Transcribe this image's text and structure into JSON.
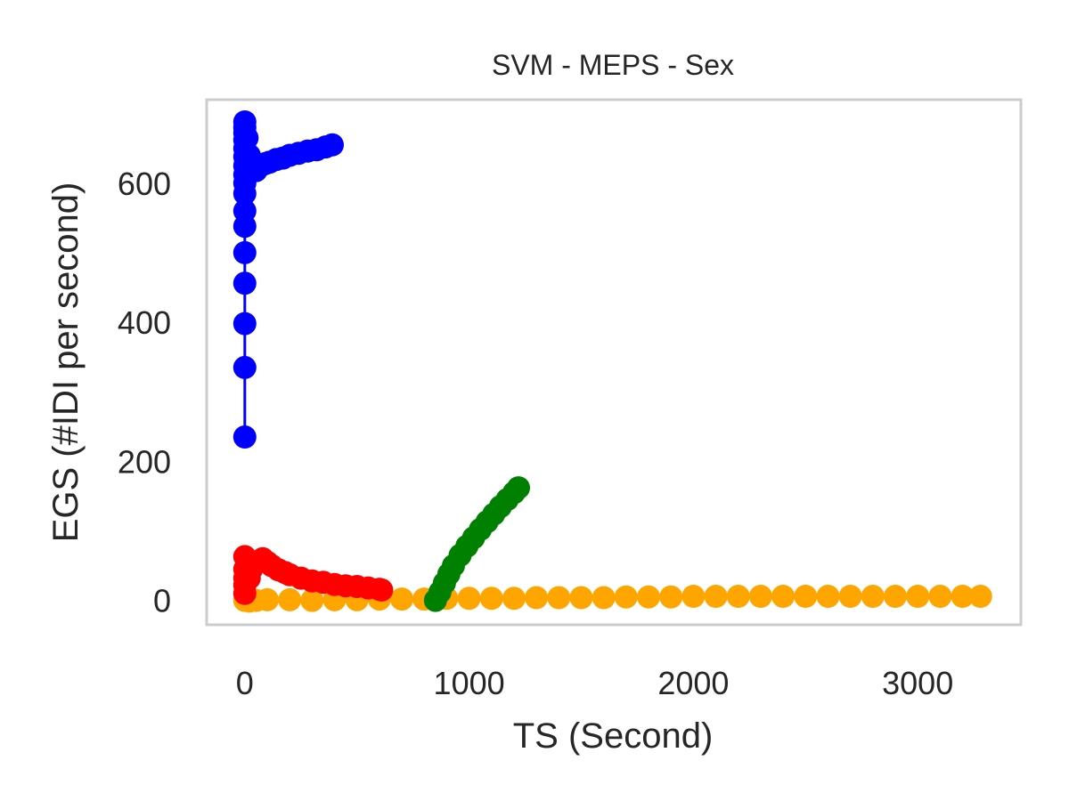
{
  "chart_data": {
    "type": "line",
    "title": "SVM - MEPS - Sex",
    "xlabel": "TS (Second)",
    "ylabel": "EGS (#IDI  per second)",
    "xlim": [
      -170,
      3460
    ],
    "ylim": [
      -35,
      720
    ],
    "xticks": [
      0,
      1000,
      2000,
      3000
    ],
    "yticks": [
      0,
      200,
      400,
      600
    ],
    "grid": false,
    "legend": "none",
    "series": [
      {
        "color": "#ffa500",
        "points": [
          [
            0,
            0
          ],
          [
            20,
            -1
          ],
          [
            50,
            0
          ],
          [
            100,
            1
          ],
          [
            200,
            1
          ],
          [
            300,
            0
          ],
          [
            400,
            1
          ],
          [
            500,
            1
          ],
          [
            600,
            2
          ],
          [
            700,
            2
          ],
          [
            800,
            2
          ],
          [
            900,
            3
          ],
          [
            1000,
            3
          ],
          [
            1100,
            3
          ],
          [
            1200,
            3
          ],
          [
            1300,
            4
          ],
          [
            1400,
            4
          ],
          [
            1500,
            4
          ],
          [
            1600,
            4
          ],
          [
            1700,
            5
          ],
          [
            1800,
            5
          ],
          [
            1900,
            5
          ],
          [
            2000,
            6
          ],
          [
            2100,
            6
          ],
          [
            2200,
            6
          ],
          [
            2300,
            6
          ],
          [
            2400,
            6
          ],
          [
            2500,
            6
          ],
          [
            2600,
            6
          ],
          [
            2700,
            6
          ],
          [
            2800,
            6
          ],
          [
            2900,
            6
          ],
          [
            3000,
            6
          ],
          [
            3100,
            6
          ],
          [
            3200,
            6
          ],
          [
            3280,
            6
          ]
        ]
      },
      {
        "color": "#ff0000",
        "points": [
          [
            0,
            10
          ],
          [
            0,
            22
          ],
          [
            0,
            32
          ],
          [
            0,
            45
          ],
          [
            0,
            63
          ],
          [
            10,
            40
          ],
          [
            20,
            32
          ],
          [
            30,
            45
          ],
          [
            50,
            55
          ],
          [
            80,
            60
          ],
          [
            100,
            55
          ],
          [
            120,
            50
          ],
          [
            150,
            44
          ],
          [
            180,
            40
          ],
          [
            200,
            37
          ],
          [
            250,
            32
          ],
          [
            300,
            28
          ],
          [
            350,
            26
          ],
          [
            400,
            23
          ],
          [
            450,
            21
          ],
          [
            500,
            20
          ],
          [
            550,
            18
          ],
          [
            600,
            16
          ],
          [
            610,
            15
          ]
        ]
      },
      {
        "color": "#008000",
        "points": [
          [
            850,
            0
          ],
          [
            870,
            12
          ],
          [
            890,
            25
          ],
          [
            910,
            38
          ],
          [
            930,
            50
          ],
          [
            960,
            65
          ],
          [
            990,
            78
          ],
          [
            1020,
            90
          ],
          [
            1050,
            102
          ],
          [
            1080,
            113
          ],
          [
            1110,
            124
          ],
          [
            1140,
            135
          ],
          [
            1170,
            145
          ],
          [
            1200,
            155
          ],
          [
            1220,
            162
          ]
        ]
      },
      {
        "color": "#0000ff",
        "points": [
          [
            0,
            235
          ],
          [
            0,
            335
          ],
          [
            0,
            398
          ],
          [
            0,
            456
          ],
          [
            0,
            500
          ],
          [
            0,
            538
          ],
          [
            0,
            560
          ],
          [
            0,
            585
          ],
          [
            0,
            600
          ],
          [
            0,
            612
          ],
          [
            0,
            625
          ],
          [
            0,
            638
          ],
          [
            0,
            650
          ],
          [
            0,
            662
          ],
          [
            0,
            672
          ],
          [
            0,
            680
          ],
          [
            0,
            688
          ],
          [
            10,
            665
          ],
          [
            20,
            640
          ],
          [
            30,
            620
          ],
          [
            50,
            618
          ],
          [
            70,
            625
          ],
          [
            90,
            628
          ],
          [
            110,
            630
          ],
          [
            140,
            634
          ],
          [
            170,
            636
          ],
          [
            200,
            640
          ],
          [
            240,
            643
          ],
          [
            280,
            646
          ],
          [
            320,
            648
          ],
          [
            360,
            652
          ],
          [
            390,
            655
          ]
        ]
      }
    ]
  }
}
